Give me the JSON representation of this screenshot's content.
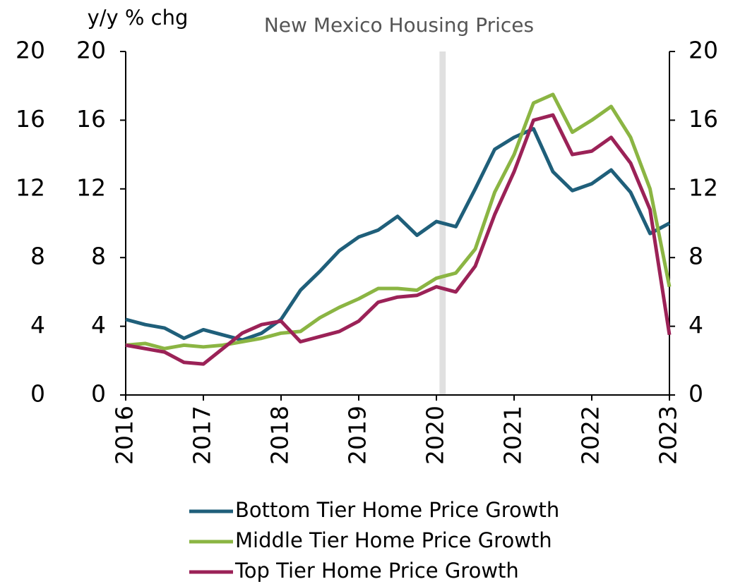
{
  "chart_data": {
    "type": "line",
    "title": "New Mexico Housing Prices",
    "y_axis_label": "y/y % chg",
    "x": [
      2016,
      2016.25,
      2016.5,
      2016.75,
      2017,
      2017.25,
      2017.5,
      2017.75,
      2018,
      2018.25,
      2018.5,
      2018.75,
      2019,
      2019.25,
      2019.5,
      2019.75,
      2020,
      2020.25,
      2020.5,
      2020.75,
      2021,
      2021.25,
      2021.5,
      2021.75,
      2022,
      2022.25,
      2022.5,
      2022.75,
      2023
    ],
    "series": [
      {
        "name": "Bottom Tier Home Price Growth",
        "color": "#1f5f7a",
        "values": [
          4.4,
          4.1,
          3.9,
          3.3,
          3.8,
          3.5,
          3.2,
          3.6,
          4.4,
          6.1,
          7.2,
          8.4,
          9.2,
          9.6,
          10.4,
          9.3,
          10.1,
          9.8,
          12.0,
          14.3,
          15.0,
          15.5,
          13.0,
          11.9,
          12.3,
          13.1,
          11.8,
          9.4,
          10.0
        ]
      },
      {
        "name": "Middle Tier Home Price Growth",
        "color": "#8bb543",
        "values": [
          2.9,
          3.0,
          2.7,
          2.9,
          2.8,
          2.9,
          3.1,
          3.3,
          3.6,
          3.7,
          4.5,
          5.1,
          5.6,
          6.2,
          6.2,
          6.1,
          6.8,
          7.1,
          8.5,
          11.8,
          14.0,
          17.0,
          17.5,
          15.3,
          16.0,
          16.8,
          15.0,
          12.0,
          6.3
        ]
      },
      {
        "name": "Top Tier Home Price Growth",
        "color": "#9b2257",
        "values": [
          2.9,
          2.7,
          2.5,
          1.9,
          1.8,
          2.7,
          3.6,
          4.1,
          4.3,
          3.1,
          3.4,
          3.7,
          4.3,
          5.4,
          5.7,
          5.8,
          6.3,
          6.0,
          7.5,
          10.5,
          13.0,
          16.0,
          16.3,
          14.0,
          14.2,
          15.0,
          13.5,
          10.8,
          3.5
        ]
      }
    ],
    "xlim": [
      2016,
      2023
    ],
    "xticks": [
      2016,
      2017,
      2018,
      2019,
      2020,
      2021,
      2022,
      2023
    ],
    "ylim": [
      0,
      20
    ],
    "yticks": [
      0,
      4,
      8,
      12,
      16,
      20
    ],
    "y2lim": [
      0,
      20
    ],
    "y2ticks": [
      0,
      4,
      8,
      12,
      16,
      20
    ],
    "highlight_x": [
      2020.04,
      2020.12
    ],
    "grid": false,
    "legend": "bottom"
  }
}
